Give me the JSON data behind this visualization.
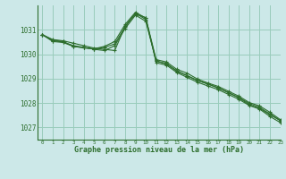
{
  "title": "Graphe pression niveau de la mer (hPa)",
  "bg_color": "#cce8e8",
  "grid_color": "#99ccbb",
  "line_color": "#2d6e2d",
  "xlim": [
    -0.5,
    23
  ],
  "ylim": [
    1026.5,
    1032.0
  ],
  "yticks": [
    1027,
    1028,
    1029,
    1030,
    1031
  ],
  "xticks": [
    0,
    1,
    2,
    3,
    4,
    5,
    6,
    7,
    8,
    9,
    10,
    11,
    12,
    13,
    14,
    15,
    16,
    17,
    18,
    19,
    20,
    21,
    22,
    23
  ],
  "lines": [
    [
      1030.8,
      1030.6,
      1030.55,
      1030.45,
      1030.35,
      1030.25,
      1030.2,
      1030.15,
      1031.15,
      1031.65,
      1031.5,
      1029.65,
      1029.55,
      1029.25,
      1029.05,
      1028.85,
      1028.7,
      1028.55,
      1028.35,
      1028.15,
      1027.9,
      1027.75,
      1027.45,
      1027.2
    ],
    [
      1030.8,
      1030.55,
      1030.5,
      1030.35,
      1030.28,
      1030.2,
      1030.15,
      1030.35,
      1031.05,
      1031.6,
      1031.35,
      1029.72,
      1029.6,
      1029.32,
      1029.12,
      1028.92,
      1028.78,
      1028.62,
      1028.42,
      1028.22,
      1027.98,
      1027.82,
      1027.55,
      1027.28
    ],
    [
      1030.8,
      1030.52,
      1030.48,
      1030.32,
      1030.26,
      1030.22,
      1030.32,
      1030.52,
      1031.22,
      1031.72,
      1031.48,
      1029.78,
      1029.68,
      1029.38,
      1029.22,
      1028.98,
      1028.82,
      1028.68,
      1028.48,
      1028.28,
      1028.02,
      1027.88,
      1027.62,
      1027.32
    ],
    [
      1030.8,
      1030.58,
      1030.52,
      1030.32,
      1030.27,
      1030.22,
      1030.28,
      1030.42,
      1031.12,
      1031.68,
      1031.42,
      1029.72,
      1029.62,
      1029.3,
      1029.12,
      1028.92,
      1028.78,
      1028.62,
      1028.42,
      1028.22,
      1027.92,
      1027.78,
      1027.52,
      1027.28
    ]
  ]
}
